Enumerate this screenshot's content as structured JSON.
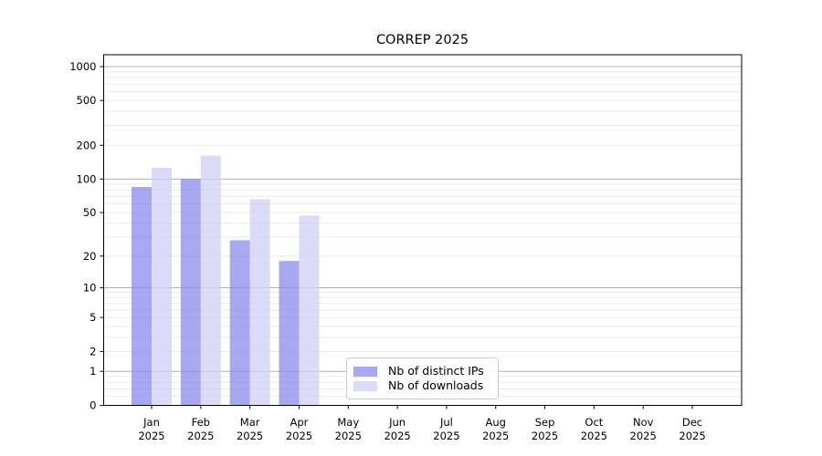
{
  "chart_data": {
    "type": "bar",
    "title": "CORREP 2025",
    "categories": [
      "Jan",
      "Feb",
      "Mar",
      "Apr",
      "May",
      "Jun",
      "Jul",
      "Aug",
      "Sep",
      "Oct",
      "Nov",
      "Dec"
    ],
    "year_label": "2025",
    "series": [
      {
        "name": "Nb of distinct IPs",
        "color": "#a8a8f0",
        "values": [
          85,
          100,
          28,
          18,
          0,
          0,
          0,
          0,
          0,
          0,
          0,
          0
        ]
      },
      {
        "name": "Nb of downloads",
        "color": "#dcdcf8",
        "values": [
          126,
          162,
          66,
          47,
          0,
          0,
          0,
          0,
          0,
          0,
          0,
          0
        ]
      }
    ],
    "y_axis": {
      "scale": "log1p",
      "tick_values": [
        0,
        1,
        2,
        5,
        10,
        20,
        50,
        100,
        200,
        500,
        1000
      ],
      "tick_labels": [
        "0",
        "1",
        "2",
        "5",
        "10",
        "20",
        "50",
        "100",
        "200",
        "500",
        "1000"
      ],
      "major_grid_values": [
        1,
        10,
        100,
        1000
      ],
      "minor_grid_values": [
        0.2,
        0.4,
        0.6,
        0.8,
        2,
        3,
        4,
        5,
        6,
        7,
        8,
        9,
        20,
        30,
        40,
        50,
        60,
        70,
        80,
        90,
        200,
        300,
        400,
        500,
        600,
        700,
        800,
        900
      ],
      "range": [
        0,
        1000
      ]
    },
    "legend": {
      "location": "lower-center-inside"
    },
    "colors": {
      "major_grid": "#b0b0b0",
      "minor_grid": "#e7e7e7",
      "axis": "#000000",
      "text": "#000000"
    }
  }
}
